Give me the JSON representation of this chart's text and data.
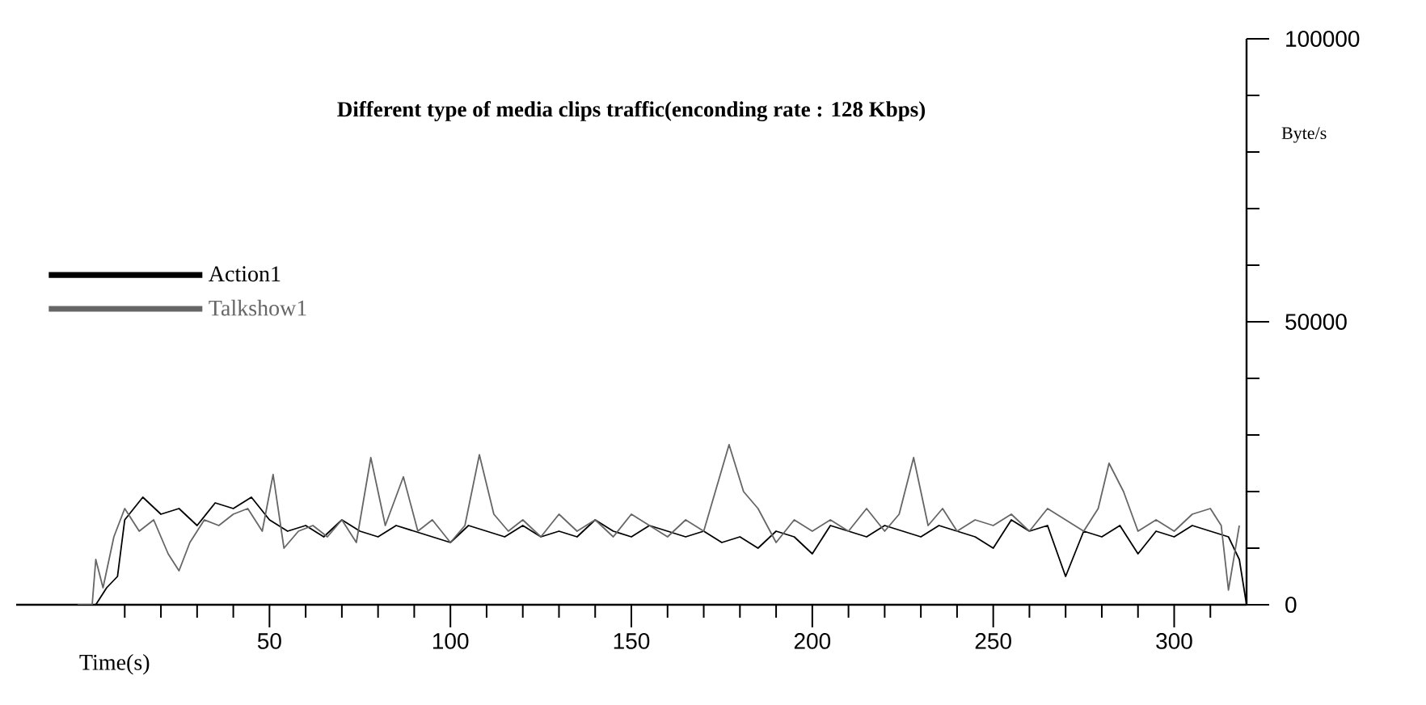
{
  "chart_data": {
    "type": "line",
    "title": "Different type of media clips traffic(enconding rate : 128 Kbps)",
    "xlabel": "Time(s)",
    "ylabel": "Byte/s",
    "xlim": [
      -20,
      320
    ],
    "ylim": [
      0,
      100000
    ],
    "xticks": [
      {
        "value": 10,
        "label": null
      },
      {
        "value": 20,
        "label": null
      },
      {
        "value": 30,
        "label": null
      },
      {
        "value": 40,
        "label": null
      },
      50,
      {
        "value": 60,
        "label": null
      },
      {
        "value": 70,
        "label": null
      },
      {
        "value": 80,
        "label": null
      },
      {
        "value": 90,
        "label": null
      },
      100,
      {
        "value": 110,
        "label": null
      },
      {
        "value": 120,
        "label": null
      },
      {
        "value": 130,
        "label": null
      },
      {
        "value": 140,
        "label": null
      },
      150,
      {
        "value": 160,
        "label": null
      },
      {
        "value": 170,
        "label": null
      },
      {
        "value": 180,
        "label": null
      },
      {
        "value": 190,
        "label": null
      },
      200,
      {
        "value": 210,
        "label": null
      },
      {
        "value": 220,
        "label": null
      },
      {
        "value": 230,
        "label": null
      },
      {
        "value": 240,
        "label": null
      },
      250,
      {
        "value": 260,
        "label": null
      },
      {
        "value": 270,
        "label": null
      },
      {
        "value": 280,
        "label": null
      },
      {
        "value": 290,
        "label": null
      },
      300,
      {
        "value": 310,
        "label": null
      }
    ],
    "yticks": [
      0,
      {
        "value": 10000,
        "label": null
      },
      {
        "value": 20000,
        "label": null
      },
      {
        "value": 30000,
        "label": null
      },
      {
        "value": 40000,
        "label": null
      },
      50000,
      {
        "value": 60000,
        "label": null
      },
      {
        "value": 70000,
        "label": null
      },
      {
        "value": 80000,
        "label": null
      },
      {
        "value": 90000,
        "label": null
      },
      100000
    ],
    "grid": false,
    "legend": "left",
    "marker": "none",
    "line_style": "solid",
    "series": [
      {
        "name": "Action1",
        "color": "#000000",
        "x": [
          -3,
          2,
          5,
          8,
          10,
          15,
          20,
          25,
          30,
          35,
          40,
          45,
          50,
          55,
          60,
          65,
          70,
          75,
          80,
          85,
          90,
          95,
          100,
          105,
          110,
          115,
          120,
          125,
          130,
          135,
          140,
          145,
          150,
          155,
          160,
          165,
          170,
          175,
          180,
          185,
          190,
          195,
          200,
          205,
          210,
          215,
          220,
          225,
          230,
          235,
          240,
          245,
          250,
          255,
          260,
          265,
          270,
          275,
          280,
          285,
          290,
          295,
          300,
          305,
          310,
          315,
          318,
          320
        ],
        "values": [
          0,
          0,
          3000,
          5000,
          15000,
          19000,
          16000,
          17000,
          14000,
          18000,
          17000,
          19000,
          15000,
          13000,
          14000,
          12000,
          15000,
          13000,
          12000,
          14000,
          13000,
          12000,
          11000,
          14000,
          13000,
          12000,
          14000,
          12000,
          13000,
          12000,
          15000,
          13000,
          12000,
          14000,
          13000,
          12000,
          13000,
          11000,
          12000,
          10000,
          13000,
          12000,
          9000,
          14000,
          13000,
          12000,
          14000,
          13000,
          12000,
          14000,
          13000,
          12000,
          10000,
          15000,
          13000,
          14000,
          5000,
          13000,
          12000,
          14000,
          9000,
          13000,
          12000,
          14000,
          13000,
          12000,
          8000,
          0
        ]
      },
      {
        "name": "Talkshow1",
        "color": "#666666",
        "x": [
          -3,
          1,
          2,
          4,
          7,
          10,
          14,
          18,
          22,
          25,
          28,
          32,
          36,
          40,
          44,
          48,
          51,
          54,
          58,
          62,
          66,
          70,
          74,
          78,
          82,
          87,
          91,
          95,
          100,
          104,
          108,
          112,
          116,
          120,
          125,
          130,
          135,
          140,
          145,
          150,
          155,
          160,
          165,
          170,
          177,
          181,
          185,
          190,
          195,
          200,
          205,
          210,
          215,
          220,
          224,
          228,
          232,
          236,
          240,
          245,
          250,
          255,
          260,
          265,
          270,
          275,
          279,
          282,
          286,
          290,
          295,
          300,
          305,
          310,
          313,
          315,
          318
        ],
        "values": [
          0,
          0,
          8000,
          3000,
          12000,
          17000,
          13000,
          15000,
          9000,
          6000,
          11000,
          15000,
          14000,
          16000,
          17000,
          13000,
          23000,
          10000,
          13000,
          14000,
          12000,
          15000,
          11000,
          26000,
          14000,
          22600,
          13000,
          15000,
          11000,
          14000,
          26500,
          16000,
          13000,
          15000,
          12000,
          16000,
          13000,
          15000,
          12000,
          16000,
          14000,
          12000,
          15000,
          13000,
          28300,
          20000,
          17000,
          11000,
          15000,
          13000,
          15000,
          13000,
          17000,
          13000,
          16000,
          26000,
          14000,
          17000,
          13000,
          15000,
          14000,
          16000,
          13000,
          17000,
          15000,
          13000,
          17000,
          25000,
          20000,
          13000,
          15000,
          13000,
          16000,
          17000,
          14000,
          2600,
          14000
        ]
      }
    ]
  }
}
